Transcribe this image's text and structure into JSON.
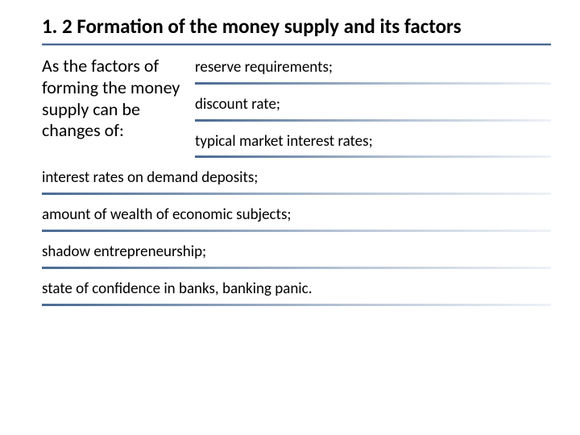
{
  "title": "1. 2 Formation of the money supply and its factors",
  "intro": "As the factors of forming the money supply can be changes of:",
  "factors_top": [
    "reserve requirements;",
    "discount rate;",
    "typical market interest rates;"
  ],
  "factors_bottom": [
    "interest rates on demand deposits;",
    "amount of wealth of economic subjects;",
    "shadow entrepreneurship;",
    "state of confidence in banks, banking panic."
  ],
  "colors": {
    "text": "#000000",
    "background": "#ffffff",
    "rule_dark": "#4a6a92",
    "rule_light": "#b8c5d6"
  },
  "fontsize": {
    "title": 25,
    "intro": 22,
    "item": 19
  }
}
